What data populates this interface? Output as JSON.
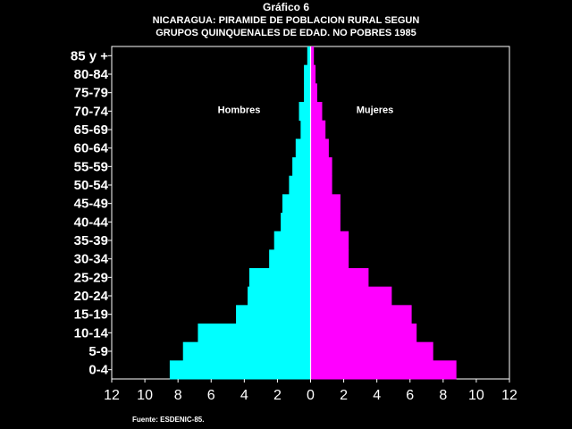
{
  "title": "Gráfico 6",
  "subtitle": [
    "NICARAGUA: PIRAMIDE DE POBLACION RURAL SEGUN",
    "GRUPOS QUINQUENALES DE EDAD. NO POBRES 1985"
  ],
  "source": "Fuente: ESDENIC-85.",
  "chart_data": {
    "type": "bar",
    "orientation": "horizontal",
    "title": "Gráfico 6",
    "categories": [
      "85 y +",
      "80-84",
      "75-79",
      "70-74",
      "65-69",
      "60-64",
      "55-59",
      "50-54",
      "45-49",
      "40-44",
      "35-39",
      "30-34",
      "25-29",
      "20-24",
      "15-19",
      "10-14",
      "5-9",
      "0-4"
    ],
    "series": [
      {
        "name": "Hombres",
        "color": "#00FFFF",
        "values": [
          0.2,
          0.4,
          0.4,
          0.7,
          0.6,
          0.9,
          1.1,
          1.3,
          1.7,
          1.8,
          2.2,
          2.5,
          3.7,
          3.8,
          4.5,
          6.8,
          7.7,
          8.5
        ]
      },
      {
        "name": "Mujeres",
        "color": "#FF00FF",
        "values": [
          0.2,
          0.3,
          0.4,
          0.7,
          0.9,
          1.1,
          1.3,
          1.3,
          1.8,
          1.8,
          2.3,
          2.3,
          3.5,
          4.9,
          6.1,
          6.4,
          7.4,
          8.8
        ]
      }
    ],
    "xlim": [
      -12,
      12
    ],
    "xticks": [
      -12,
      -10,
      -8,
      -6,
      -4,
      -2,
      0,
      2,
      4,
      6,
      8,
      10,
      12
    ],
    "xtick_labels": [
      "12",
      "10",
      "8",
      "6",
      "4",
      "2",
      "0",
      "2",
      "4",
      "6",
      "8",
      "10",
      "12"
    ],
    "legend": "inline labels",
    "grid": false
  }
}
